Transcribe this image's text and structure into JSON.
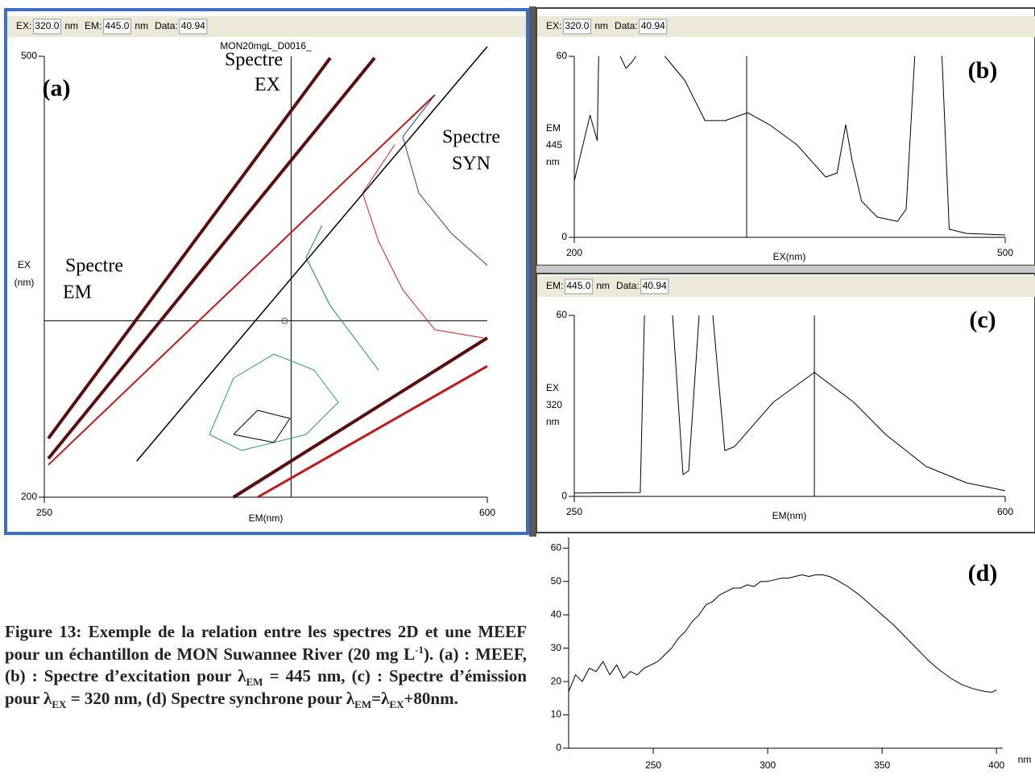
{
  "chart_data": [
    {
      "type": "contour",
      "title": "MON20mgL_D0016_",
      "panel_label": "(a)",
      "header": [
        {
          "label": "EX:",
          "value": "320.0",
          "unit": "nm"
        },
        {
          "label": "EM:",
          "value": "445.0",
          "unit": "nm"
        },
        {
          "label": "Data:",
          "value": "40.94"
        }
      ],
      "x_label": "EM(nm)",
      "y_label": [
        "EX",
        "(nm)"
      ],
      "xlim": [
        250,
        600
      ],
      "ylim": [
        200,
        500
      ],
      "xticks": [
        250,
        600
      ],
      "yticks": [
        200,
        500
      ],
      "cursor": [
        445,
        320
      ],
      "annotations": [
        [
          "Spectre",
          "EX"
        ],
        [
          "Spectre",
          "SYN"
        ],
        [
          "Spectre",
          "EM"
        ]
      ],
      "series": [
        {
          "color": "#5a0f0f",
          "width": 4,
          "x": [
            253.2,
            475.9
          ],
          "values": [
            240,
            498.9
          ]
        },
        {
          "color": "#5a0f0f",
          "width": 4,
          "x": [
            253.2,
            510.9
          ],
          "values": [
            226.3,
            498.9
          ]
        },
        {
          "color": "#c01818",
          "width": 2,
          "x": [
            253.2,
            558.6
          ],
          "values": [
            222,
            473.7
          ]
        },
        {
          "color": "#5a0f0f",
          "width": 4,
          "x": [
            399.5,
            600
          ],
          "values": [
            200,
            308.4
          ]
        },
        {
          "color": "#c01818",
          "width": 3,
          "x": [
            418.6,
            600
          ],
          "values": [
            200,
            289.2
          ]
        },
        {
          "color": "#2a3fa8",
          "width": 1,
          "x": [
            558.6,
            533.2,
            545.9,
            571.4,
            600
          ],
          "values": [
            473.7,
            445.3,
            407,
            379.7,
            357.7
          ]
        },
        {
          "color": "#d42020",
          "width": 1,
          "x": [
            526.8,
            501.4,
            514.1,
            533.2,
            558.6,
            596.8
          ],
          "values": [
            439.8,
            407,
            374.1,
            341.2,
            313.9,
            308.4
          ]
        },
        {
          "color": "#1a8a4a",
          "width": 1,
          "x": [
            469.5,
            456.8,
            475.9,
            495,
            514.1
          ],
          "values": [
            385,
            363.1,
            330.3,
            308.4,
            286.5
          ]
        },
        {
          "color": "#2a9a7a",
          "width": 1,
          "x": [
            380.5,
            399.5,
            431.4,
            463.2,
            482.3,
            456.8,
            405.9,
            380.5
          ],
          "values": [
            242.7,
            281,
            297.4,
            286.5,
            264.6,
            242.7,
            231.8,
            242.7
          ]
        },
        {
          "color": "#000000",
          "width": 1,
          "x": [
            399.5,
            418.6,
            444.1,
            431.4,
            399.5
          ],
          "values": [
            242.7,
            259.1,
            253.6,
            237.2,
            242.7
          ]
        },
        {
          "color": "#000000",
          "width": 1.5,
          "x": [
            323,
            600
          ],
          "values": [
            224.6,
            506.6
          ]
        }
      ]
    },
    {
      "type": "line",
      "panel_label": "(b)",
      "header": [
        {
          "label": "EX:",
          "value": "320.0",
          "unit": "nm"
        },
        {
          "label": "Data:",
          "value": "40.94"
        }
      ],
      "x_label": "EX(nm)",
      "y_label": [
        "EM",
        "445",
        "nm"
      ],
      "xlim": [
        200,
        500
      ],
      "ylim": [
        0,
        60
      ],
      "xticks": [
        200,
        500
      ],
      "yticks": [
        0,
        60
      ],
      "cursor": 320,
      "series": [
        {
          "color": "#000000",
          "x": [
            200,
            211,
            216,
            217,
            226,
            232,
            236,
            240,
            243,
            250,
            263,
            277,
            291,
            305,
            320.6,
            336,
            355,
            375,
            383,
            389,
            393.5,
            400,
            411,
            425,
            431,
            437,
            445,
            456,
            461,
            473,
            500
          ],
          "values": [
            18.7,
            40.5,
            32,
            60,
            null,
            60,
            56,
            58,
            60,
            null,
            60,
            52,
            38.7,
            38.7,
            41.3,
            37.3,
            30.7,
            20,
            21.3,
            37.3,
            25.3,
            12,
            6.7,
            5.3,
            9.3,
            60,
            null,
            60,
            2.7,
            1.3,
            0.8
          ]
        }
      ]
    },
    {
      "type": "line",
      "panel_label": "(c)",
      "header": [
        {
          "label": "EM:",
          "value": "445.0",
          "unit": "nm"
        },
        {
          "label": "Data:",
          "value": "40.94"
        }
      ],
      "x_label": "EM(nm)",
      "y_label": [
        "EX",
        "320",
        "nm"
      ],
      "xlim": [
        250,
        600
      ],
      "ylim": [
        0,
        60
      ],
      "xticks": [
        250,
        600
      ],
      "yticks": [
        0,
        60
      ],
      "cursor": 445,
      "series": [
        {
          "color": "#000000",
          "x": [
            250,
            303.6,
            307,
            318,
            329.8,
            338.3,
            342.9,
            351.4,
            356,
            362.5,
            372.3,
            380.2,
            411.6,
            445,
            477,
            503,
            535.9,
            568.6,
            600
          ],
          "values": [
            1.1,
            1.3,
            60,
            null,
            60,
            7.2,
            8.5,
            60,
            null,
            60,
            15.2,
            16.5,
            31.2,
            41.1,
            31.2,
            20.5,
            9.9,
            4.5,
            1.9
          ]
        }
      ]
    },
    {
      "type": "line",
      "panel_label": "(d)",
      "x_label": "nm",
      "xlim": [
        213,
        401
      ],
      "ylim": [
        0,
        62
      ],
      "xticks": [
        250,
        300,
        350,
        400
      ],
      "yticks": [
        0,
        10,
        20,
        30,
        40,
        50,
        60
      ],
      "series": [
        {
          "color": "#000000",
          "x": [
            213,
            216,
            219,
            222,
            225,
            228,
            231,
            234,
            237,
            240,
            243,
            246,
            249,
            252,
            255,
            258,
            261,
            264,
            267,
            270,
            273,
            276,
            279,
            282,
            285,
            288,
            291,
            294,
            297,
            300,
            303,
            306,
            309,
            312,
            315,
            318,
            321,
            324,
            327,
            330,
            335,
            340,
            345,
            350,
            355,
            360,
            365,
            370,
            375,
            380,
            385,
            390,
            395,
            398,
            400
          ],
          "values": [
            17,
            22,
            20,
            24,
            23,
            26,
            22,
            25,
            21,
            23,
            22,
            24,
            25,
            26,
            28,
            30,
            33,
            35,
            38,
            40,
            43,
            44,
            46,
            47,
            48,
            48,
            49,
            48.5,
            50,
            50,
            50.5,
            51,
            51,
            51.5,
            52,
            51.5,
            52,
            52,
            51.5,
            50.5,
            48.5,
            46,
            43,
            40,
            37,
            33.5,
            30,
            26.5,
            23.5,
            21,
            19,
            17.8,
            17,
            16.8,
            17.5
          ]
        }
      ]
    }
  ],
  "caption": [
    {
      "text": "Figure 13: Exemple de la relation entre les spectres 2D et une MEEF pour un échantillon de MON Suwannee River (20 mg L"
    },
    {
      "sup": "-1"
    },
    {
      "text": "). (a) : MEEF, (b) : Spectre d’excitation pour λ"
    },
    {
      "sub": "EM"
    },
    {
      "text": " = 445 nm, (c) : Spectre d’émission pour λ"
    },
    {
      "sub": "EX"
    },
    {
      "text": " = 320 nm, (d) Spectre synchrone pour λ"
    },
    {
      "sub": "EM"
    },
    {
      "text": "=λ"
    },
    {
      "sub": "EX"
    },
    {
      "text": "+80nm."
    }
  ]
}
